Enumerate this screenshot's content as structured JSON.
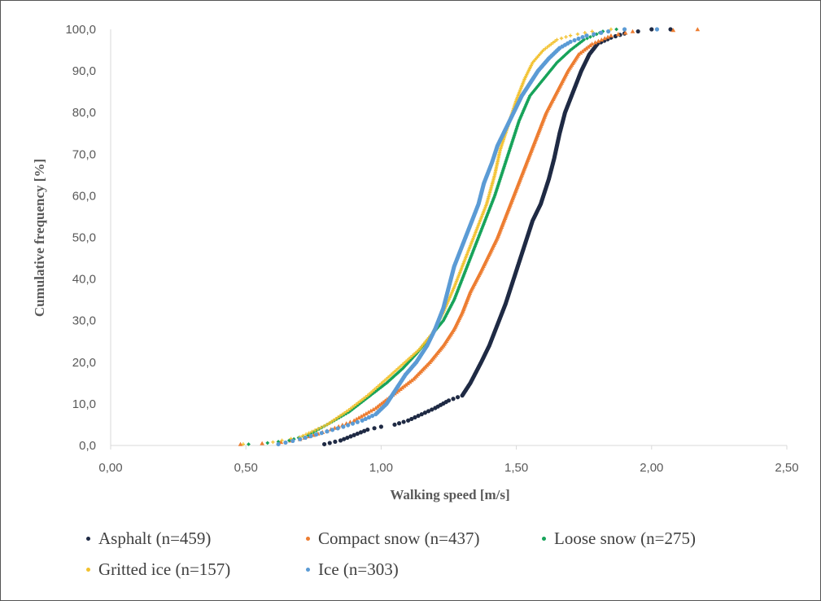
{
  "chart_data": {
    "type": "scatter",
    "title": "",
    "xlabel": "Walking speed [m/s]",
    "ylabel": "Cumulative frequency [%]",
    "xlim": [
      0,
      2.5
    ],
    "ylim": [
      0,
      100
    ],
    "x_ticks": [
      "0,00",
      "0,50",
      "1,00",
      "1,50",
      "2,00",
      "2,50"
    ],
    "y_ticks": [
      "0,0",
      "10,0",
      "20,0",
      "30,0",
      "40,0",
      "50,0",
      "60,0",
      "70,0",
      "80,0",
      "90,0",
      "100,0"
    ],
    "grid": false,
    "legend_position": "bottom",
    "series": [
      {
        "name": "Asphalt (n=459)",
        "color": "#1f2a44",
        "marker": "circle",
        "points": [
          [
            0.79,
            0.3
          ],
          [
            0.85,
            1.2
          ],
          [
            0.9,
            2.5
          ],
          [
            0.95,
            3.8
          ],
          [
            1.0,
            4.5
          ],
          [
            1.05,
            5.0
          ],
          [
            1.1,
            6.0
          ],
          [
            1.15,
            7.5
          ],
          [
            1.2,
            9.0
          ],
          [
            1.25,
            10.8
          ],
          [
            1.3,
            12.0
          ],
          [
            1.33,
            15.0
          ],
          [
            1.37,
            20.0
          ],
          [
            1.4,
            24.0
          ],
          [
            1.43,
            29.0
          ],
          [
            1.46,
            34.0
          ],
          [
            1.48,
            38.0
          ],
          [
            1.5,
            42.0
          ],
          [
            1.53,
            48.0
          ],
          [
            1.56,
            54.0
          ],
          [
            1.59,
            58.0
          ],
          [
            1.62,
            64.0
          ],
          [
            1.64,
            69.0
          ],
          [
            1.66,
            75.0
          ],
          [
            1.68,
            80.0
          ],
          [
            1.71,
            85.0
          ],
          [
            1.74,
            90.0
          ],
          [
            1.77,
            94.0
          ],
          [
            1.8,
            96.5
          ],
          [
            1.85,
            98.0
          ],
          [
            1.9,
            99.0
          ],
          [
            1.95,
            99.5
          ],
          [
            2.0,
            100.0
          ],
          [
            2.07,
            100.0
          ]
        ]
      },
      {
        "name": "Compact snow (n=437)",
        "color": "#ed7d31",
        "marker": "triangle",
        "points": [
          [
            0.48,
            0.3
          ],
          [
            0.56,
            0.5
          ],
          [
            0.63,
            0.8
          ],
          [
            0.7,
            1.5
          ],
          [
            0.8,
            3.5
          ],
          [
            0.9,
            6.0
          ],
          [
            0.98,
            9.0
          ],
          [
            1.05,
            12.5
          ],
          [
            1.12,
            16.0
          ],
          [
            1.18,
            20.0
          ],
          [
            1.23,
            24.0
          ],
          [
            1.27,
            28.0
          ],
          [
            1.3,
            32.0
          ],
          [
            1.33,
            37.0
          ],
          [
            1.37,
            42.0
          ],
          [
            1.4,
            46.0
          ],
          [
            1.43,
            50.0
          ],
          [
            1.46,
            55.0
          ],
          [
            1.49,
            60.0
          ],
          [
            1.52,
            65.0
          ],
          [
            1.55,
            70.0
          ],
          [
            1.58,
            75.0
          ],
          [
            1.61,
            80.0
          ],
          [
            1.65,
            85.0
          ],
          [
            1.69,
            90.0
          ],
          [
            1.73,
            94.0
          ],
          [
            1.78,
            96.5
          ],
          [
            1.85,
            98.5
          ],
          [
            1.93,
            99.5
          ],
          [
            2.08,
            99.8
          ],
          [
            2.17,
            100.0
          ]
        ]
      },
      {
        "name": "Loose snow (n=275)",
        "color": "#17a35a",
        "marker": "diamond",
        "points": [
          [
            0.51,
            0.3
          ],
          [
            0.58,
            0.6
          ],
          [
            0.66,
            1.2
          ],
          [
            0.73,
            2.5
          ],
          [
            0.8,
            5.0
          ],
          [
            0.88,
            8.0
          ],
          [
            0.95,
            11.5
          ],
          [
            1.02,
            15.0
          ],
          [
            1.08,
            18.5
          ],
          [
            1.13,
            22.0
          ],
          [
            1.18,
            26.0
          ],
          [
            1.23,
            30.0
          ],
          [
            1.27,
            35.0
          ],
          [
            1.3,
            40.0
          ],
          [
            1.33,
            45.0
          ],
          [
            1.36,
            50.0
          ],
          [
            1.39,
            55.0
          ],
          [
            1.42,
            60.0
          ],
          [
            1.45,
            66.0
          ],
          [
            1.48,
            72.0
          ],
          [
            1.51,
            78.0
          ],
          [
            1.55,
            84.0
          ],
          [
            1.6,
            88.0
          ],
          [
            1.65,
            92.0
          ],
          [
            1.7,
            95.0
          ],
          [
            1.75,
            97.5
          ],
          [
            1.82,
            99.5
          ],
          [
            1.87,
            100.0
          ]
        ]
      },
      {
        "name": "Gritted ice (n=157)",
        "color": "#f2c12e",
        "marker": "plus",
        "points": [
          [
            0.49,
            0.3
          ],
          [
            0.6,
            0.8
          ],
          [
            0.7,
            2.0
          ],
          [
            0.8,
            5.0
          ],
          [
            0.88,
            8.5
          ],
          [
            0.95,
            12.0
          ],
          [
            1.02,
            16.0
          ],
          [
            1.08,
            19.5
          ],
          [
            1.14,
            23.0
          ],
          [
            1.19,
            27.0
          ],
          [
            1.23,
            32.0
          ],
          [
            1.27,
            38.0
          ],
          [
            1.3,
            43.0
          ],
          [
            1.33,
            48.0
          ],
          [
            1.36,
            53.0
          ],
          [
            1.39,
            58.0
          ],
          [
            1.42,
            65.0
          ],
          [
            1.44,
            71.0
          ],
          [
            1.47,
            77.0
          ],
          [
            1.5,
            83.0
          ],
          [
            1.53,
            88.0
          ],
          [
            1.56,
            92.0
          ],
          [
            1.6,
            95.0
          ],
          [
            1.65,
            97.5
          ],
          [
            1.7,
            98.5
          ],
          [
            1.78,
            99.5
          ],
          [
            1.85,
            100.0
          ]
        ]
      },
      {
        "name": "Ice (n=303)",
        "color": "#5b9bd5",
        "marker": "circle",
        "points": [
          [
            0.62,
            0.3
          ],
          [
            0.7,
            1.5
          ],
          [
            0.78,
            3.0
          ],
          [
            0.86,
            4.5
          ],
          [
            0.93,
            6.0
          ],
          [
            0.98,
            7.5
          ],
          [
            1.02,
            10.0
          ],
          [
            1.05,
            13.0
          ],
          [
            1.09,
            17.0
          ],
          [
            1.13,
            20.0
          ],
          [
            1.17,
            24.0
          ],
          [
            1.2,
            28.0
          ],
          [
            1.23,
            33.0
          ],
          [
            1.25,
            38.0
          ],
          [
            1.27,
            43.0
          ],
          [
            1.3,
            48.0
          ],
          [
            1.33,
            53.0
          ],
          [
            1.36,
            58.0
          ],
          [
            1.38,
            63.0
          ],
          [
            1.41,
            68.0
          ],
          [
            1.43,
            72.0
          ],
          [
            1.46,
            76.0
          ],
          [
            1.49,
            80.0
          ],
          [
            1.52,
            84.0
          ],
          [
            1.55,
            87.0
          ],
          [
            1.58,
            90.0
          ],
          [
            1.62,
            93.0
          ],
          [
            1.66,
            95.5
          ],
          [
            1.7,
            97.0
          ],
          [
            1.76,
            98.5
          ],
          [
            1.84,
            99.5
          ],
          [
            1.9,
            100.0
          ],
          [
            2.02,
            100.0
          ]
        ]
      }
    ]
  }
}
